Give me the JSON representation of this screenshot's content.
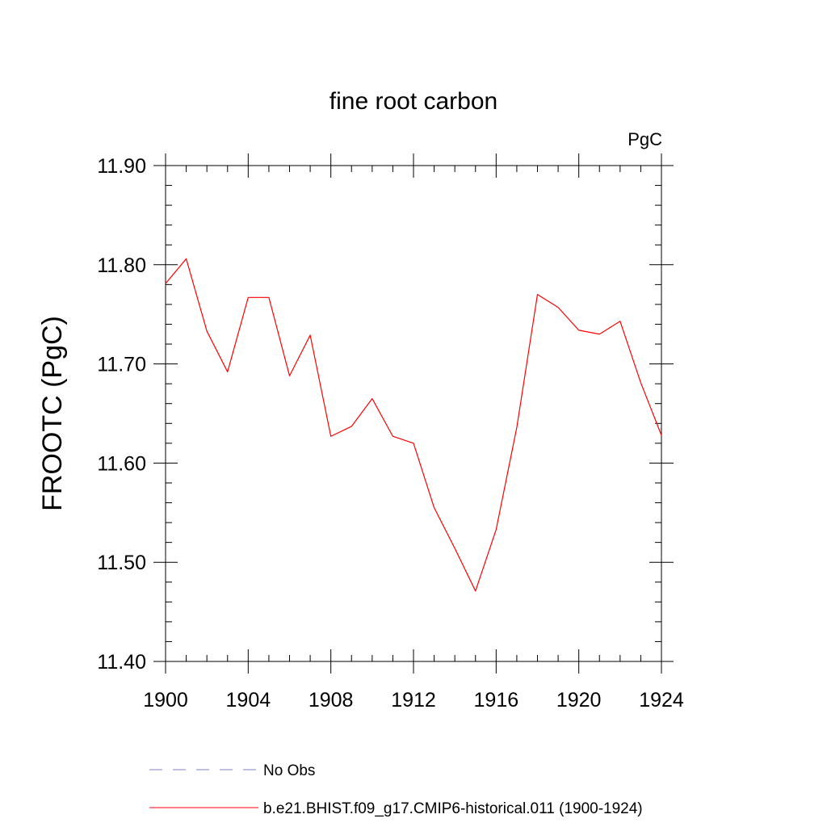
{
  "chart_data": {
    "type": "line",
    "title": "fine root carbon",
    "units": "PgC",
    "ylabel": "FROOTC  (PgC)",
    "xlabel": "",
    "xlim": [
      1900,
      1924
    ],
    "ylim": [
      11.4,
      11.9
    ],
    "xticks": [
      "1900",
      "1904",
      "1908",
      "1912",
      "1916",
      "1920",
      "1924"
    ],
    "yticks": [
      "11.40",
      "11.50",
      "11.60",
      "11.70",
      "11.80",
      "11.90"
    ],
    "grid": false,
    "legend_position": "bottom",
    "legend": [
      {
        "label": "No Obs",
        "style": "dashed",
        "color": "#8080c0"
      },
      {
        "label": "b.e21.BHIST.f09_g17.CMIP6-historical.011 (1900-1924)",
        "style": "solid",
        "color": "#ff0000"
      }
    ],
    "series": [
      {
        "name": "b.e21.BHIST.f09_g17.CMIP6-historical.011 (1900-1924)",
        "color": "#ff0000",
        "x": [
          1900,
          1901,
          1902,
          1903,
          1904,
          1905,
          1906,
          1907,
          1908,
          1909,
          1910,
          1911,
          1912,
          1913,
          1914,
          1915,
          1916,
          1917,
          1918,
          1919,
          1920,
          1921,
          1922,
          1923,
          1924
        ],
        "y": [
          11.781,
          11.806,
          11.733,
          11.692,
          11.767,
          11.767,
          11.688,
          11.729,
          11.627,
          11.637,
          11.665,
          11.627,
          11.62,
          11.555,
          11.514,
          11.471,
          11.533,
          11.636,
          11.77,
          11.757,
          11.734,
          11.73,
          11.743,
          11.681,
          11.628
        ]
      }
    ]
  }
}
